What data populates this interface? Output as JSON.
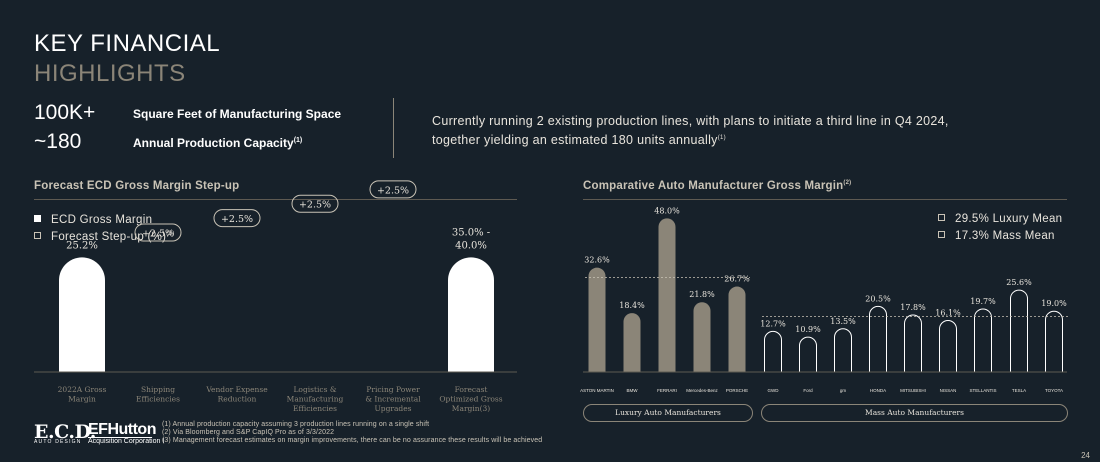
{
  "page_title": {
    "line1": "KEY FINANCIAL",
    "line2": "HIGHLIGHTS"
  },
  "stats": [
    {
      "value": "100K+",
      "label": "Square Feet of Manufacturing Space",
      "sup": ""
    },
    {
      "value": "~180",
      "label": "Annual Production Capacity",
      "sup": "(1)"
    }
  ],
  "description": {
    "text": "Currently running 2 existing production lines, with plans to initiate a third line in Q4 2024, together yielding an estimated 180 units annually",
    "sup": "(1)"
  },
  "left_section": {
    "title": "Forecast ECD Gross Margin Step-up",
    "sup": ""
  },
  "right_section": {
    "title": "Comparative Auto Manufacturer Gross Margin",
    "sup": "(2)"
  },
  "colors": {
    "background": "#17212a",
    "bar_luxury": "#8b8578",
    "bar_base": "#ffffff",
    "line": "#c9c3b6",
    "muted": "#8b8578"
  },
  "chart_data": [
    {
      "type": "bar",
      "categories": [
        "2022A Gross\nMargin",
        "Shipping\nEfficiencies",
        "Vendor Expense\nReduction",
        "Logistics &\nManufacturing\nEfficiencies",
        "Pricing Power\n& Incremental\nUpgrades",
        "Forecast\nOptimized Gross\nMargin"
      ],
      "category_sups": [
        "",
        "",
        "",
        "",
        "",
        "(3)"
      ],
      "legend": [
        {
          "label": "ECD Gross Margin",
          "sup": "",
          "style": "filled"
        },
        {
          "label": "Forecast Step-up (%)",
          "sup": "(3)",
          "style": "hollow"
        }
      ],
      "base_value": 25.2,
      "base_label": "25.2%",
      "steps": [
        2.5,
        2.5,
        2.5,
        2.5
      ],
      "step_labels": [
        "+2.5%",
        "+2.5%",
        "+2.5%",
        "+2.5%"
      ],
      "final_range": [
        35.0,
        40.0
      ],
      "final_label_lines": [
        "35.0% -",
        "40.0%"
      ]
    },
    {
      "type": "bar",
      "legend": [
        {
          "label": "29.5% Luxury Mean",
          "style": "hollow"
        },
        {
          "label": "17.3% Mass Mean",
          "style": "hollow"
        }
      ],
      "luxury_mean": 29.5,
      "mass_mean": 17.3,
      "groups": [
        {
          "name": "Luxury Auto Manufacturers",
          "companies": [
            "ASTON MARTIN",
            "BMW",
            "FERRARI",
            "Mercedes-Benz",
            "PORSCHE"
          ],
          "values": [
            32.6,
            18.4,
            48.0,
            21.8,
            26.7
          ],
          "labels": [
            "32.6%",
            "18.4%",
            "48.0%",
            "21.8%",
            "26.7%"
          ]
        },
        {
          "name": "Mass Auto Manufacturers",
          "companies": [
            "GWD",
            "Ford",
            "gm",
            "HONDA",
            "MITSUBISHI",
            "NISSAN",
            "STELLANTIS",
            "TESLA",
            "TOYOTA"
          ],
          "values": [
            12.7,
            10.9,
            13.5,
            20.5,
            17.8,
            16.1,
            19.7,
            25.6,
            19.0
          ],
          "labels": [
            "12.7%",
            "10.9%",
            "13.5%",
            "20.5%",
            "17.8%",
            "16.1%",
            "19.7%",
            "25.6%",
            "19.0%"
          ]
        }
      ]
    }
  ],
  "footnotes": [
    "(1) Annual production capacity assuming 3 production lines running on a single shift",
    "(2) Via Bloomberg and S&P CapIQ Pro as of 3/3/2022",
    "(3) Management forecast estimates on margin improvements, there can be no assurance these results will be achieved"
  ],
  "logos": {
    "ecd": "E.C.D.",
    "ecd_sub": "AUTO DESIGN",
    "ef": "EFHutton",
    "ef_sub": "Acquisition Corporation I"
  },
  "page_number": "24"
}
